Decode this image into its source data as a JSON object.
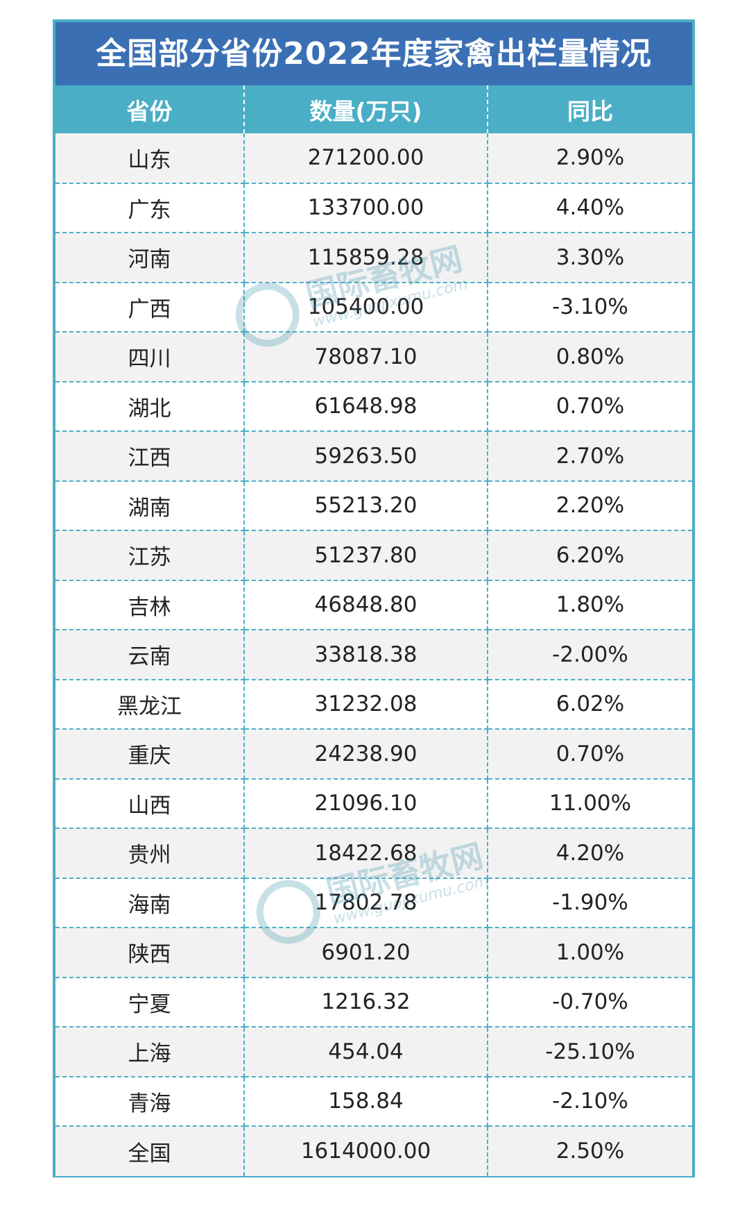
{
  "title": "全国部分省份2022年度家禽出栏量情况",
  "headers": {
    "province": "省份",
    "quantity": "数量(万只)",
    "yoy": "同比"
  },
  "rows": [
    {
      "province": "山东",
      "quantity": "271200.00",
      "yoy": "2.90%"
    },
    {
      "province": "广东",
      "quantity": "133700.00",
      "yoy": "4.40%"
    },
    {
      "province": "河南",
      "quantity": "115859.28",
      "yoy": "3.30%"
    },
    {
      "province": "广西",
      "quantity": "105400.00",
      "yoy": "-3.10%"
    },
    {
      "province": "四川",
      "quantity": "78087.10",
      "yoy": "0.80%"
    },
    {
      "province": "湖北",
      "quantity": "61648.98",
      "yoy": "0.70%"
    },
    {
      "province": "江西",
      "quantity": "59263.50",
      "yoy": "2.70%"
    },
    {
      "province": "湖南",
      "quantity": "55213.20",
      "yoy": "2.20%"
    },
    {
      "province": "江苏",
      "quantity": "51237.80",
      "yoy": "6.20%"
    },
    {
      "province": "吉林",
      "quantity": "46848.80",
      "yoy": "1.80%"
    },
    {
      "province": "云南",
      "quantity": "33818.38",
      "yoy": "-2.00%"
    },
    {
      "province": "黑龙江",
      "quantity": "31232.08",
      "yoy": "6.02%"
    },
    {
      "province": "重庆",
      "quantity": "24238.90",
      "yoy": "0.70%"
    },
    {
      "province": "山西",
      "quantity": "21096.10",
      "yoy": "11.00%"
    },
    {
      "province": "贵州",
      "quantity": "18422.68",
      "yoy": "4.20%"
    },
    {
      "province": "海南",
      "quantity": "17802.78",
      "yoy": "-1.90%"
    },
    {
      "province": "陕西",
      "quantity": "6901.20",
      "yoy": "1.00%"
    },
    {
      "province": "宁夏",
      "quantity": "1216.32",
      "yoy": "-0.70%"
    },
    {
      "province": "上海",
      "quantity": "454.04",
      "yoy": "-25.10%"
    },
    {
      "province": "青海",
      "quantity": "158.84",
      "yoy": "-2.10%"
    },
    {
      "province": "全国",
      "quantity": "1614000.00",
      "yoy": "2.50%"
    }
  ],
  "watermark": {
    "name": "国际畜牧网",
    "url": "www.guojixumu.com"
  },
  "colors": {
    "title_bg": "#3b6fb4",
    "header_bg": "#4aaec6",
    "border": "#4aaec6"
  }
}
